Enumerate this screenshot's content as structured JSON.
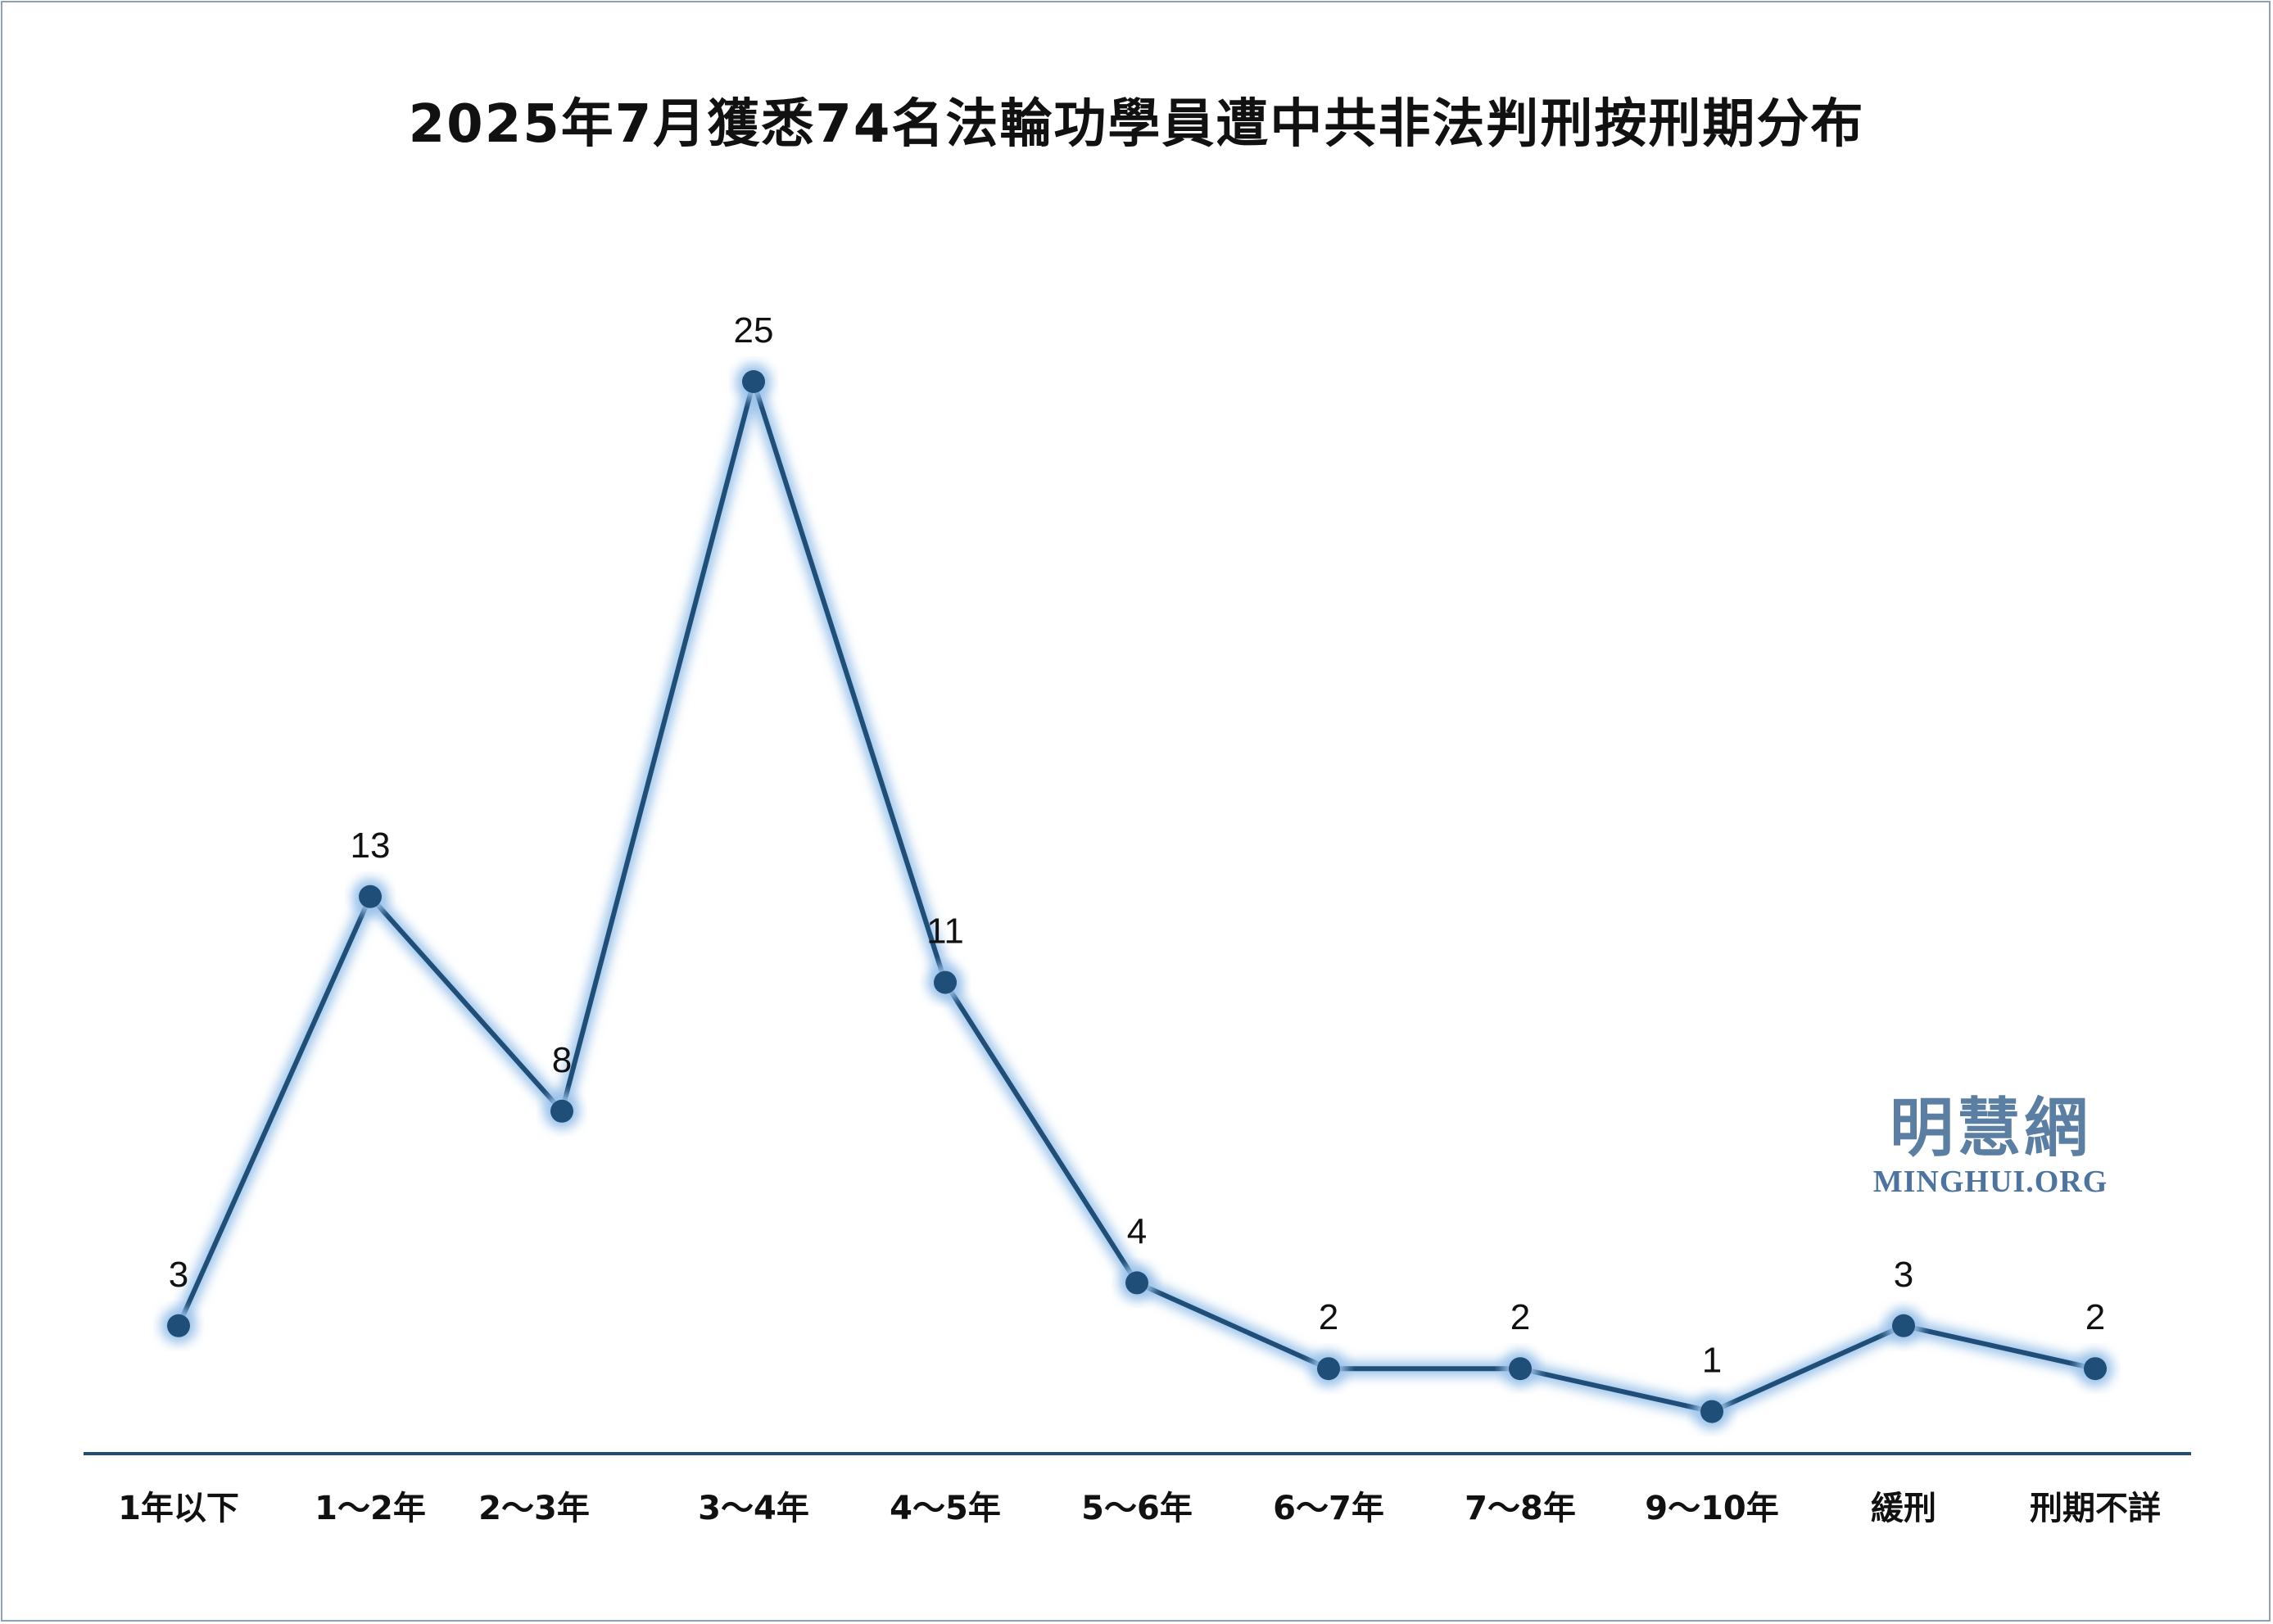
{
  "chart_data": {
    "type": "line",
    "title": "2025年7月獲悉74名法輪功學員遭中共非法判刑按刑期分布",
    "categories": [
      "1年以下",
      "1～2年",
      "2～3年",
      "3～4年",
      "4～5年",
      "5～6年",
      "6～7年",
      "7～8年",
      "9～10年",
      "緩刑",
      "刑期不詳"
    ],
    "values": [
      3,
      13,
      8,
      25,
      11,
      4,
      2,
      2,
      1,
      3,
      2
    ],
    "data_labels": [
      "3",
      "13",
      "8",
      "25",
      "11",
      "4",
      "2",
      "2",
      "1",
      "3",
      "2"
    ],
    "xlabel": "",
    "ylabel": "",
    "ylim": [
      0,
      27
    ],
    "grid": false,
    "legend": "none",
    "line_color": "#1f4e79",
    "glow_color": "#9cc3ea"
  },
  "watermark": {
    "cn": "明慧網",
    "en": "MINGHUI.ORG"
  }
}
